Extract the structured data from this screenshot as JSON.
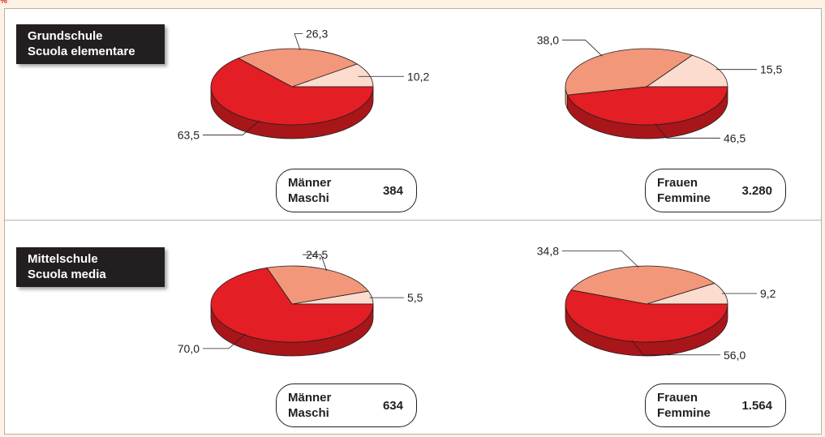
{
  "unit": "%",
  "colors": {
    "main": "#e31e24",
    "mainDark": "#a8161a",
    "mid": "#f2977a",
    "light": "#fbdccf",
    "outline": "#231f20"
  },
  "sections": [
    {
      "title": [
        "Grundschule",
        "Scuola elementare"
      ]
    },
    {
      "title": [
        "Mittelschule",
        "Scuola media"
      ]
    }
  ],
  "chart_data": [
    {
      "type": "pie",
      "section": "Grundschule / Scuola elementare",
      "group": [
        "Männer",
        "Maschi"
      ],
      "total": "384",
      "values": [
        10.2,
        26.3,
        63.5
      ],
      "labels": [
        "10,2",
        "26,3",
        "63,5"
      ]
    },
    {
      "type": "pie",
      "section": "Grundschule / Scuola elementare",
      "group": [
        "Frauen",
        "Femmine"
      ],
      "total": "3.280",
      "values": [
        15.5,
        38.0,
        46.5
      ],
      "labels": [
        "15,5",
        "38,0",
        "46,5"
      ]
    },
    {
      "type": "pie",
      "section": "Mittelschule / Scuola media",
      "group": [
        "Männer",
        "Maschi"
      ],
      "total": "634",
      "values": [
        5.5,
        24.5,
        70.0
      ],
      "labels": [
        "5,5",
        "24,5",
        "70,0"
      ]
    },
    {
      "type": "pie",
      "section": "Mittelschule / Scuola media",
      "group": [
        "Frauen",
        "Femmine"
      ],
      "total": "1.564",
      "values": [
        9.2,
        34.8,
        56.0
      ],
      "labels": [
        "9,2",
        "34,8",
        "56,0"
      ]
    }
  ]
}
